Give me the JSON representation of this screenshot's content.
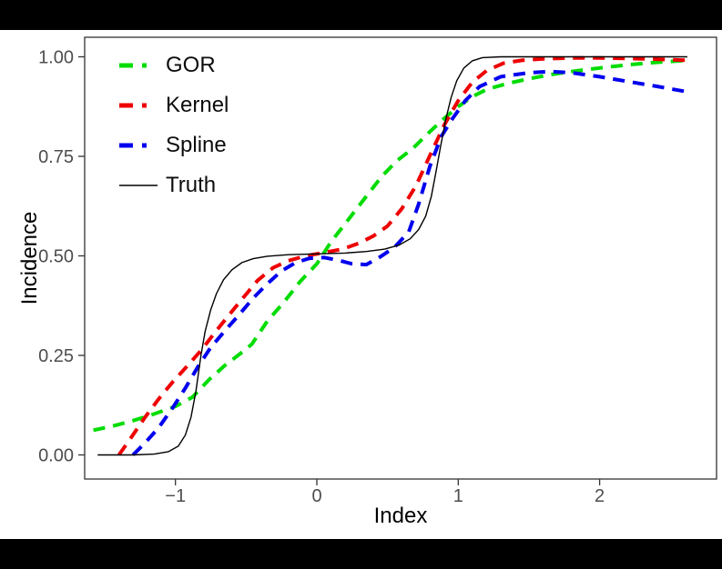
{
  "letterbox_color": "#000000",
  "background_color": "#ffffff",
  "chart_data": {
    "type": "line",
    "title": "",
    "xlabel": "Index",
    "ylabel": "Incidence",
    "xlim": [
      -1.64,
      2.83
    ],
    "ylim": [
      -0.05,
      1.05
    ],
    "grid": false,
    "legend_position": "inside top-left",
    "panel_border_color": "#333333",
    "tick_color": "#333333",
    "tick_label_color": "#4d4d4d",
    "axis_title_color": "#000000",
    "x_ticks": [
      -1,
      0,
      1,
      2
    ],
    "x_tick_labels": [
      "−1",
      "0",
      "1",
      "2"
    ],
    "y_ticks": [
      0,
      0.25,
      0.5,
      0.75,
      1
    ],
    "y_tick_labels": [
      "0.00",
      "0.25",
      "0.50",
      "0.75",
      "1.00"
    ],
    "series": [
      {
        "name": "GOR",
        "color": "#00dc00",
        "linetype": "dashed",
        "width": 4,
        "points": [
          [
            -1.58,
            0.062
          ],
          [
            -1.45,
            0.072
          ],
          [
            -1.3,
            0.086
          ],
          [
            -1.15,
            0.103
          ],
          [
            -1.0,
            0.122
          ],
          [
            -0.88,
            0.145
          ],
          [
            -0.76,
            0.19
          ],
          [
            -0.65,
            0.225
          ],
          [
            -0.55,
            0.252
          ],
          [
            -0.46,
            0.278
          ],
          [
            -0.35,
            0.336
          ],
          [
            -0.23,
            0.385
          ],
          [
            -0.12,
            0.435
          ],
          [
            0.0,
            0.48
          ],
          [
            0.1,
            0.535
          ],
          [
            0.22,
            0.59
          ],
          [
            0.34,
            0.645
          ],
          [
            0.46,
            0.7
          ],
          [
            0.57,
            0.74
          ],
          [
            0.68,
            0.77
          ],
          [
            0.8,
            0.812
          ],
          [
            0.9,
            0.845
          ],
          [
            1.0,
            0.875
          ],
          [
            1.1,
            0.9
          ],
          [
            1.2,
            0.918
          ],
          [
            1.35,
            0.933
          ],
          [
            1.5,
            0.945
          ],
          [
            1.65,
            0.955
          ],
          [
            1.8,
            0.963
          ],
          [
            2.0,
            0.972
          ],
          [
            2.2,
            0.98
          ],
          [
            2.4,
            0.986
          ],
          [
            2.62,
            0.991
          ]
        ]
      },
      {
        "name": "Kernel",
        "color": "#ee0000",
        "linetype": "dashed",
        "width": 4,
        "points": [
          [
            -1.4,
            0.0
          ],
          [
            -1.32,
            0.04
          ],
          [
            -1.22,
            0.092
          ],
          [
            -1.12,
            0.14
          ],
          [
            -1.02,
            0.183
          ],
          [
            -0.92,
            0.222
          ],
          [
            -0.82,
            0.262
          ],
          [
            -0.72,
            0.308
          ],
          [
            -0.62,
            0.352
          ],
          [
            -0.52,
            0.395
          ],
          [
            -0.42,
            0.438
          ],
          [
            -0.31,
            0.47
          ],
          [
            -0.2,
            0.488
          ],
          [
            -0.08,
            0.5
          ],
          [
            0.05,
            0.508
          ],
          [
            0.18,
            0.517
          ],
          [
            0.3,
            0.532
          ],
          [
            0.4,
            0.55
          ],
          [
            0.5,
            0.575
          ],
          [
            0.6,
            0.618
          ],
          [
            0.7,
            0.675
          ],
          [
            0.8,
            0.752
          ],
          [
            0.9,
            0.828
          ],
          [
            1.0,
            0.89
          ],
          [
            1.1,
            0.936
          ],
          [
            1.2,
            0.965
          ],
          [
            1.32,
            0.984
          ],
          [
            1.45,
            0.991
          ],
          [
            1.6,
            0.995
          ],
          [
            1.8,
            0.997
          ],
          [
            2.0,
            0.997
          ],
          [
            2.2,
            0.996
          ],
          [
            2.4,
            0.994
          ],
          [
            2.62,
            0.991
          ]
        ]
      },
      {
        "name": "Spline",
        "color": "#0000ee",
        "linetype": "dashed",
        "width": 4,
        "points": [
          [
            -1.3,
            0.0
          ],
          [
            -1.22,
            0.028
          ],
          [
            -1.12,
            0.068
          ],
          [
            -1.02,
            0.118
          ],
          [
            -0.93,
            0.168
          ],
          [
            -0.84,
            0.222
          ],
          [
            -0.75,
            0.27
          ],
          [
            -0.65,
            0.312
          ],
          [
            -0.55,
            0.352
          ],
          [
            -0.45,
            0.394
          ],
          [
            -0.35,
            0.43
          ],
          [
            -0.25,
            0.462
          ],
          [
            -0.15,
            0.483
          ],
          [
            -0.05,
            0.494
          ],
          [
            0.05,
            0.496
          ],
          [
            0.15,
            0.489
          ],
          [
            0.25,
            0.48
          ],
          [
            0.35,
            0.478
          ],
          [
            0.45,
            0.498
          ],
          [
            0.55,
            0.522
          ],
          [
            0.65,
            0.56
          ],
          [
            0.72,
            0.63
          ],
          [
            0.8,
            0.725
          ],
          [
            0.88,
            0.8
          ],
          [
            0.96,
            0.845
          ],
          [
            1.05,
            0.89
          ],
          [
            1.15,
            0.925
          ],
          [
            1.3,
            0.95
          ],
          [
            1.5,
            0.96
          ],
          [
            1.65,
            0.963
          ],
          [
            1.8,
            0.96
          ],
          [
            2.0,
            0.95
          ],
          [
            2.2,
            0.938
          ],
          [
            2.4,
            0.926
          ],
          [
            2.62,
            0.912
          ]
        ]
      },
      {
        "name": "Truth",
        "color": "#000000",
        "linetype": "solid",
        "width": 1.4,
        "points": [
          [
            -1.55,
            0.0
          ],
          [
            -1.3,
            0.0
          ],
          [
            -1.15,
            0.002
          ],
          [
            -1.05,
            0.008
          ],
          [
            -0.98,
            0.022
          ],
          [
            -0.93,
            0.05
          ],
          [
            -0.89,
            0.095
          ],
          [
            -0.855,
            0.16
          ],
          [
            -0.82,
            0.25
          ],
          [
            -0.79,
            0.31
          ],
          [
            -0.75,
            0.365
          ],
          [
            -0.71,
            0.405
          ],
          [
            -0.66,
            0.44
          ],
          [
            -0.6,
            0.465
          ],
          [
            -0.53,
            0.483
          ],
          [
            -0.45,
            0.493
          ],
          [
            -0.35,
            0.499
          ],
          [
            -0.2,
            0.503
          ],
          [
            0.0,
            0.505
          ],
          [
            0.2,
            0.507
          ],
          [
            0.35,
            0.511
          ],
          [
            0.48,
            0.517
          ],
          [
            0.58,
            0.527
          ],
          [
            0.66,
            0.543
          ],
          [
            0.72,
            0.566
          ],
          [
            0.77,
            0.6
          ],
          [
            0.81,
            0.65
          ],
          [
            0.845,
            0.715
          ],
          [
            0.875,
            0.775
          ],
          [
            0.91,
            0.84
          ],
          [
            0.95,
            0.898
          ],
          [
            0.99,
            0.94
          ],
          [
            1.04,
            0.972
          ],
          [
            1.1,
            0.99
          ],
          [
            1.17,
            0.998
          ],
          [
            1.3,
            1.0
          ],
          [
            2.62,
            1.0
          ]
        ]
      }
    ]
  }
}
